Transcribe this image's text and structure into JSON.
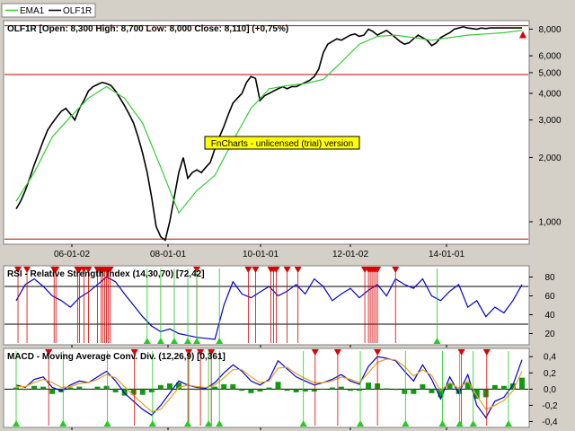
{
  "legend": [
    {
      "name": "EMA1",
      "color": "#33cc33"
    },
    {
      "name": "OLF1R",
      "color": "#000000"
    }
  ],
  "watermark": "FnCharts - unlicensed (trial) version",
  "colors": {
    "price": "#000000",
    "ema": "#33cc33",
    "level_lines": "#cc0000",
    "rsi_line": "#0000cc",
    "macd_line": "#0000cc",
    "signal_line": "#e8a020",
    "histogram": "#119911",
    "sell_marker": "#dd0000",
    "buy_marker": "#22cc22",
    "watermark_bg": "#ffff00"
  },
  "date_ticks": [
    "06-01-02",
    "08-01-01",
    "10-01-01",
    "12-01-02",
    "14-01-01"
  ],
  "chart_data": [
    {
      "type": "line",
      "title": "OLF1R [Open: 8,300  High: 8,700  Low: 8,000  Close: 8,110] (+0,75%)",
      "scale": "log",
      "ylim": [
        800,
        8600
      ],
      "y_ticks": [
        "8,000",
        "6,000",
        "5,000",
        "4,000",
        "3,000",
        "2,000",
        "1,000"
      ],
      "y_tick_values": [
        8000,
        6000,
        5000,
        4000,
        3000,
        2000,
        1000
      ],
      "horizontal_levels": [
        8300,
        4900,
        830
      ],
      "series": [
        {
          "name": "OLF1R",
          "x": [
            0,
            5,
            10,
            15,
            20,
            25,
            30,
            35,
            40,
            45,
            50,
            55,
            60,
            65,
            70,
            75,
            80,
            85,
            90,
            95,
            100,
            105,
            110,
            115,
            120,
            125,
            130,
            135,
            140,
            145,
            150,
            155,
            160,
            165,
            170,
            175,
            180,
            185,
            190,
            195,
            200,
            205,
            210,
            215,
            220,
            225,
            230,
            235,
            240,
            245,
            250,
            255,
            260,
            265,
            270,
            275,
            280,
            285,
            290,
            295,
            300,
            305,
            310,
            315,
            320,
            325,
            330,
            335,
            340,
            345,
            350,
            355,
            360,
            365,
            370,
            375,
            380,
            385,
            390,
            395,
            400,
            405,
            410,
            415,
            420,
            425,
            430,
            435,
            440,
            445,
            450,
            455,
            460,
            465,
            470,
            475,
            480,
            485,
            490,
            495,
            500,
            505,
            510,
            515,
            520,
            525,
            530,
            535,
            540,
            545,
            550,
            555,
            560
          ],
          "values": [
            1150,
            1250,
            1400,
            1600,
            1850,
            2100,
            2400,
            2700,
            2900,
            3100,
            3300,
            3400,
            3200,
            3000,
            3400,
            3700,
            4100,
            4300,
            4400,
            4500,
            4450,
            4350,
            4100,
            3800,
            3500,
            3200,
            2900,
            2500,
            2100,
            1700,
            1300,
            950,
            850,
            820,
            1000,
            1300,
            1700,
            2000,
            1600,
            1700,
            1750,
            1700,
            1800,
            1900,
            2200,
            2500,
            2800,
            3200,
            3600,
            3800,
            4000,
            4500,
            4800,
            4700,
            3700,
            3900,
            4000,
            4100,
            4200,
            4300,
            4200,
            4300,
            4300,
            4400,
            4500,
            4600,
            4800,
            5200,
            6200,
            6800,
            7000,
            7200,
            7100,
            7300,
            7500,
            7600,
            7400,
            7500,
            8000,
            7800,
            7500,
            7700,
            7900,
            7600,
            7300,
            7000,
            6800,
            6900,
            7200,
            7500,
            7300,
            7100,
            6700,
            6900,
            7300,
            7500,
            7700,
            8000,
            8100,
            8200,
            8100,
            8050,
            8000,
            8100,
            8050,
            8110,
            8110,
            8110,
            8110,
            8110,
            8110,
            8110,
            8110
          ]
        },
        {
          "name": "EMA1",
          "x": [
            0,
            20,
            40,
            60,
            80,
            100,
            120,
            140,
            160,
            180,
            200,
            220,
            240,
            260,
            280,
            300,
            320,
            340,
            360,
            380,
            400,
            420,
            440,
            460,
            480,
            500,
            520,
            540,
            560
          ],
          "values": [
            1250,
            1700,
            2500,
            3100,
            3800,
            4300,
            3800,
            2900,
            1800,
            1100,
            1400,
            1650,
            2400,
            3400,
            4200,
            4350,
            4450,
            4650,
            5600,
            6800,
            7400,
            7500,
            7300,
            7100,
            7300,
            7500,
            7600,
            7700,
            7900
          ]
        }
      ],
      "markers": [
        {
          "type": "buy-arrow",
          "x": 561,
          "value": 7400
        }
      ]
    },
    {
      "type": "line",
      "title": "RSI - Relative Strength Index (14,30,70) [72,42]",
      "ylim": [
        10,
        90
      ],
      "y_ticks": [
        "80",
        "60",
        "40",
        "20"
      ],
      "y_tick_values": [
        80,
        60,
        40,
        20
      ],
      "horizontal_levels": [
        70,
        30
      ],
      "series": [
        {
          "name": "RSI",
          "x": [
            0,
            10,
            20,
            30,
            40,
            50,
            60,
            70,
            80,
            90,
            100,
            110,
            120,
            130,
            140,
            150,
            160,
            170,
            180,
            190,
            200,
            210,
            220,
            230,
            240,
            250,
            260,
            270,
            280,
            290,
            300,
            310,
            320,
            330,
            340,
            350,
            360,
            370,
            380,
            390,
            400,
            410,
            420,
            430,
            440,
            450,
            460,
            470,
            480,
            490,
            500,
            510,
            520,
            530,
            540,
            550,
            560
          ],
          "values": [
            55,
            72,
            78,
            70,
            60,
            55,
            48,
            58,
            64,
            72,
            80,
            75,
            62,
            50,
            38,
            28,
            22,
            25,
            20,
            18,
            16,
            15,
            14,
            50,
            75,
            62,
            58,
            64,
            70,
            60,
            65,
            72,
            62,
            78,
            70,
            55,
            62,
            68,
            58,
            66,
            72,
            60,
            78,
            72,
            68,
            78,
            60,
            55,
            65,
            72,
            48,
            55,
            38,
            48,
            42,
            55,
            72
          ]
        }
      ],
      "sell_markers_x": [
        2,
        12,
        42,
        44,
        68,
        70,
        75,
        80,
        90,
        94,
        96,
        98,
        100,
        102,
        104,
        200,
        257,
        265,
        282,
        285,
        288,
        300,
        312,
        386,
        390,
        392,
        394,
        396,
        398,
        400,
        420
      ],
      "buy_markers_x": [
        145,
        160,
        175,
        190,
        200,
        225,
        466
      ]
    },
    {
      "type": "line",
      "title": "MACD - Moving Average Conv. Div. (12,26,9) [0,361]",
      "ylim": [
        -0.45,
        0.48
      ],
      "y_ticks": [
        "0,4",
        "0,2",
        "0,0",
        "-0,2",
        "-0,4"
      ],
      "y_tick_values": [
        0.4,
        0.2,
        0.0,
        -0.2,
        -0.4
      ],
      "horizontal_levels": [
        0
      ],
      "series": [
        {
          "name": "MACD",
          "x": [
            0,
            10,
            20,
            30,
            40,
            50,
            60,
            70,
            80,
            90,
            100,
            110,
            120,
            130,
            140,
            150,
            160,
            170,
            180,
            190,
            200,
            210,
            220,
            230,
            240,
            250,
            260,
            270,
            280,
            290,
            300,
            310,
            320,
            330,
            340,
            350,
            360,
            370,
            380,
            390,
            400,
            410,
            420,
            430,
            440,
            450,
            460,
            470,
            480,
            490,
            500,
            510,
            520,
            530,
            540,
            550,
            560
          ],
          "values": [
            0.05,
            0.02,
            0.12,
            0.15,
            0.02,
            -0.02,
            0.05,
            0.1,
            0.08,
            0.15,
            0.22,
            0.1,
            -0.05,
            -0.15,
            -0.25,
            -0.32,
            -0.2,
            -0.05,
            0.1,
            0.05,
            0.02,
            0.01,
            0.08,
            0.2,
            0.3,
            0.22,
            0.1,
            0.05,
            0.12,
            0.35,
            0.25,
            0.15,
            0.1,
            0.05,
            0.08,
            0.12,
            0.18,
            0.1,
            0.06,
            0.28,
            0.4,
            0.38,
            0.35,
            0.22,
            0.1,
            0.3,
            0.12,
            -0.12,
            0.15,
            -0.05,
            0.18,
            -0.2,
            -0.35,
            -0.15,
            -0.1,
            0.05,
            0.361
          ]
        },
        {
          "name": "Signal",
          "x": [
            0,
            10,
            20,
            30,
            40,
            50,
            60,
            70,
            80,
            90,
            100,
            110,
            120,
            130,
            140,
            150,
            160,
            170,
            180,
            190,
            200,
            210,
            220,
            230,
            240,
            250,
            260,
            270,
            280,
            290,
            300,
            310,
            320,
            330,
            340,
            350,
            360,
            370,
            380,
            390,
            400,
            410,
            420,
            430,
            440,
            450,
            460,
            470,
            480,
            490,
            500,
            510,
            520,
            530,
            540,
            550,
            560
          ],
          "values": [
            0.03,
            0.03,
            0.08,
            0.12,
            0.08,
            0.02,
            0.03,
            0.07,
            0.08,
            0.12,
            0.18,
            0.14,
            0.03,
            -0.08,
            -0.18,
            -0.28,
            -0.25,
            -0.12,
            0.02,
            0.05,
            0.03,
            0.02,
            0.05,
            0.14,
            0.24,
            0.24,
            0.15,
            0.08,
            0.1,
            0.26,
            0.27,
            0.19,
            0.13,
            0.08,
            0.08,
            0.1,
            0.15,
            0.12,
            0.08,
            0.2,
            0.33,
            0.37,
            0.36,
            0.28,
            0.16,
            0.24,
            0.17,
            -0.02,
            0.08,
            0.01,
            0.1,
            -0.08,
            -0.25,
            -0.2,
            -0.14,
            -0.02,
            0.22
          ]
        }
      ],
      "sell_markers_x": [
        36,
        131,
        191,
        204,
        216,
        331,
        356,
        400,
        493,
        521
      ],
      "buy_markers_x": [
        0,
        52,
        101,
        151,
        190,
        213,
        225,
        318,
        381,
        431,
        472,
        491,
        506,
        545
      ]
    }
  ]
}
